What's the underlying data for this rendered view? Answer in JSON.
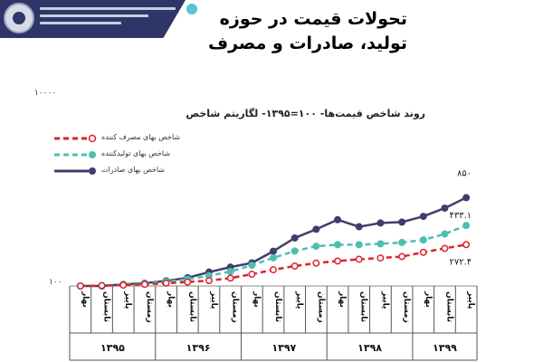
{
  "logo": {
    "emblem": "institute-emblem-icon"
  },
  "title_lines": [
    "تحولات قیمت در حوزه",
    "تولید، صادرات و مصرف"
  ],
  "chart_data": {
    "type": "line",
    "title": "روند شاخص قیمت‌ها- ۱۰۰=۱۳۹۵- لگاریتم شاخص",
    "y_scale": "log",
    "ylim": [
      100,
      10000
    ],
    "y_tick_labels": [
      "۱۰۰",
      "۱۰۰۰۰"
    ],
    "categories": [
      {
        "season": "بهار",
        "year": "۱۳۹۵"
      },
      {
        "season": "تابستان",
        "year": "۱۳۹۵"
      },
      {
        "season": "پاییز",
        "year": "۱۳۹۵"
      },
      {
        "season": "زمستان",
        "year": "۱۳۹۵"
      },
      {
        "season": "بهار",
        "year": "۱۳۹۶"
      },
      {
        "season": "تابستان",
        "year": "۱۳۹۶"
      },
      {
        "season": "پاییز",
        "year": "۱۳۹۶"
      },
      {
        "season": "زمستان",
        "year": "۱۳۹۶"
      },
      {
        "season": "بهار",
        "year": "۱۳۹۷"
      },
      {
        "season": "تابستان",
        "year": "۱۳۹۷"
      },
      {
        "season": "پاییز",
        "year": "۱۳۹۷"
      },
      {
        "season": "زمستان",
        "year": "۱۳۹۷"
      },
      {
        "season": "بهار",
        "year": "۱۳۹۸"
      },
      {
        "season": "تابستان",
        "year": "۱۳۹۸"
      },
      {
        "season": "پاییز",
        "year": "۱۳۹۸"
      },
      {
        "season": "زمستان",
        "year": "۱۳۹۸"
      },
      {
        "season": "بهار",
        "year": "۱۳۹۹"
      },
      {
        "season": "تابستان",
        "year": "۱۳۹۹"
      },
      {
        "season": "پاییز",
        "year": "۱۳۹۹"
      }
    ],
    "years": [
      "۱۳۹۵",
      "۱۳۹۶",
      "۱۳۹۷",
      "۱۳۹۸",
      "۱۳۹۹"
    ],
    "series": [
      {
        "name": "شاخص بهای مصرف کننده",
        "color": "#e0222b",
        "style": "dashed-circle",
        "values": [
          100,
          101,
          102,
          104,
          107,
          110,
          114,
          121,
          133,
          148,
          162,
          174,
          183,
          191,
          197,
          204,
          226,
          249,
          272.4
        ],
        "end_label": "۲۷۲.۴"
      },
      {
        "name": "شاخص بهای تولیدکننده",
        "color": "#4dbfb0",
        "style": "solid-dot",
        "values": [
          100,
          101,
          103,
          106,
          111,
          118,
          128,
          142,
          165,
          198,
          233,
          262,
          272,
          272,
          278,
          287,
          305,
          353,
          433.1
        ],
        "end_label": "۴۳۳.۱"
      },
      {
        "name": "شاخص بهای صادرات",
        "color": "#3e3f6a",
        "style": "solid-dot",
        "values": [
          100,
          100,
          104,
          107,
          113,
          122,
          140,
          158,
          175,
          232,
          320,
          395,
          498,
          420,
          460,
          470,
          540,
          660,
          850
        ],
        "end_label": "۸۵۰"
      }
    ],
    "legend_position": "top-left",
    "grid": false
  }
}
